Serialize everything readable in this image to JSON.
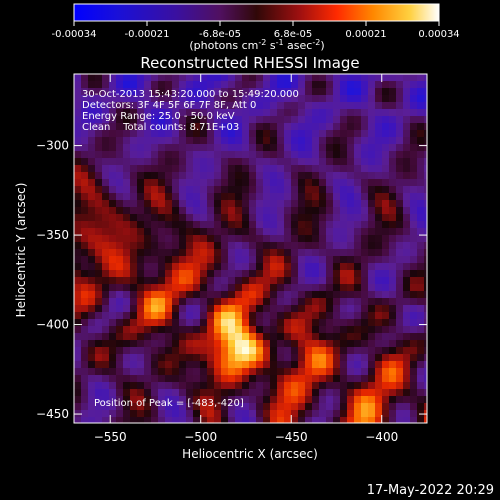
{
  "colorbar": {
    "tick_labels": [
      "-0.00034",
      "-0.00021",
      "-6.8e-05",
      "6.8e-05",
      "0.00021",
      "0.00034"
    ],
    "unit_label": "(photons cm",
    "unit_exp1": "-2",
    "unit_mid": " s",
    "unit_exp2": "-1",
    "unit_mid2": " asec",
    "unit_exp3": "-2",
    "unit_end": ")",
    "range": [
      -0.00034,
      0.00034
    ]
  },
  "chart_data": {
    "type": "heatmap",
    "title": "Reconstructed RHESSI Image",
    "xlabel": "Heliocentric X (arcsec)",
    "ylabel": "Heliocentric Y (arcsec)",
    "xlim": [
      -570,
      -375
    ],
    "ylim": [
      -455,
      -260
    ],
    "xticks": [
      -550,
      -500,
      -450,
      -400
    ],
    "yticks": [
      -300,
      -350,
      -400,
      -450
    ],
    "colormap": "RHESSI color table (blue → purple → red → orange → yellow → white)",
    "annotations": [
      "30-Oct-2013 15:43:20.000 to 15:49:20.000",
      "Detectors: 3F 4F 5F 6F 7F 8F, Att 0",
      "Energy Range: 25.0 - 50.0 keV",
      "Clean    Total counts: 8.71E+03"
    ],
    "peak_label": "Position of Peak = [-483,-420]",
    "peak": [
      -483,
      -420
    ]
  },
  "footer": {
    "timestamp": "17-May-2022 20:29"
  }
}
